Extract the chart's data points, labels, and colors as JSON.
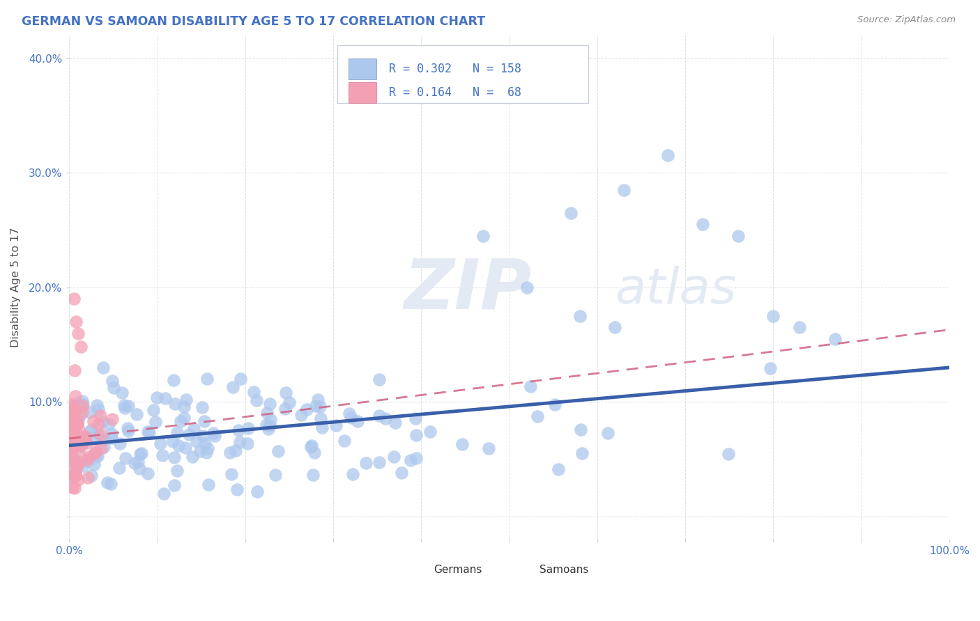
{
  "title": "GERMAN VS SAMOAN DISABILITY AGE 5 TO 17 CORRELATION CHART",
  "source_text": "Source: ZipAtlas.com",
  "ylabel": "Disability Age 5 to 17",
  "xlim": [
    0.0,
    1.0
  ],
  "ylim": [
    -0.02,
    0.42
  ],
  "german_R": 0.302,
  "german_N": 158,
  "samoan_R": 0.164,
  "samoan_N": 68,
  "german_color": "#adc8ed",
  "samoan_color": "#f4a0b4",
  "german_line_color": "#3a5faa",
  "samoan_line_color": "#d06080",
  "title_color": "#4472c4",
  "axis_color": "#4472c4",
  "ylabel_color": "#555555",
  "source_color": "#888888",
  "background_color": "#ffffff",
  "grid_color": "#d4dce8",
  "watermark_color": "#e4eaf4"
}
